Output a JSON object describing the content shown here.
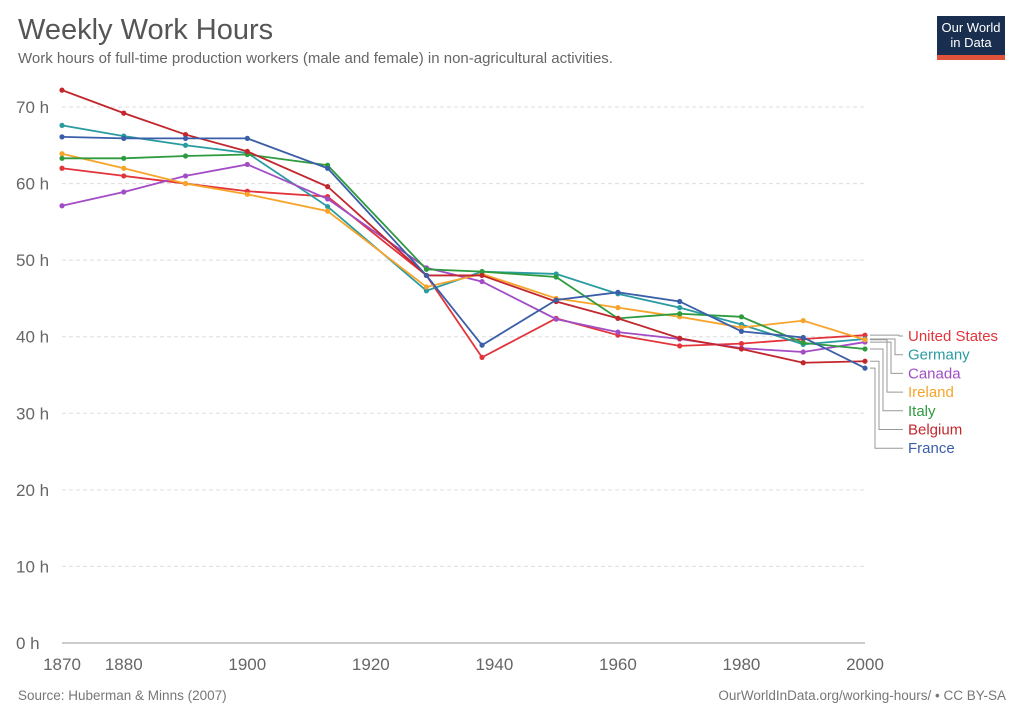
{
  "title": "Weekly Work Hours",
  "subtitle": "Work hours of full-time production workers (male and female) in non-agricultural activities.",
  "logo": {
    "line1": "Our World",
    "line2": "in Data"
  },
  "footer": {
    "source": "Source: Huberman & Minns (2007)",
    "link": "OurWorldInData.org/working-hours/ • CC BY-SA"
  },
  "chart_data": {
    "type": "line",
    "title": "Weekly Work Hours",
    "xlim": [
      1870,
      2000
    ],
    "ylim": [
      0,
      70
    ],
    "x_ticks": [
      1870,
      1880,
      1900,
      1920,
      1940,
      1960,
      1980,
      2000
    ],
    "y_ticks": [
      0,
      10,
      20,
      30,
      40,
      50,
      60,
      70
    ],
    "y_tick_labels": [
      "0 h",
      "10 h",
      "20 h",
      "30 h",
      "40 h",
      "50 h",
      "60 h",
      "70 h"
    ],
    "grid": "horizontal dashed",
    "legend": "right (labels at line ends)",
    "x": [
      1870,
      1880,
      1890,
      1900,
      1913,
      1929,
      1938,
      1950,
      1960,
      1970,
      1980,
      1990,
      2000
    ],
    "series": [
      {
        "name": "United States",
        "color": "#e2343b",
        "values": [
          62.0,
          61.0,
          60.0,
          59.0,
          58.3,
          48.0,
          37.3,
          42.4,
          40.2,
          38.8,
          39.1,
          39.7,
          40.2
        ]
      },
      {
        "name": "Germany",
        "color": "#2a9ba0",
        "values": [
          67.6,
          66.2,
          65.0,
          64.0,
          57.0,
          46.0,
          48.5,
          48.2,
          45.6,
          43.8,
          41.6,
          39.0,
          39.7
        ]
      },
      {
        "name": "Canada",
        "color": "#a24dc6",
        "values": [
          57.1,
          58.9,
          61.0,
          62.5,
          58.0,
          49.0,
          47.2,
          42.3,
          40.6,
          39.7,
          38.5,
          38.0,
          39.3
        ]
      },
      {
        "name": "Ireland",
        "color": "#f8a42a",
        "values": [
          63.9,
          62.0,
          60.0,
          58.6,
          56.4,
          46.5,
          48.2,
          45.0,
          43.8,
          42.6,
          41.2,
          42.1,
          39.6
        ]
      },
      {
        "name": "Italy",
        "color": "#2e9b3f",
        "values": [
          63.3,
          63.3,
          63.6,
          63.8,
          62.4,
          48.8,
          48.5,
          47.8,
          42.4,
          43.0,
          42.6,
          39.2,
          38.4
        ]
      },
      {
        "name": "Belgium",
        "color": "#c2272d",
        "values": [
          72.2,
          69.2,
          66.4,
          64.2,
          59.6,
          48.0,
          48.0,
          44.6,
          42.4,
          39.8,
          38.4,
          36.6,
          36.8
        ]
      },
      {
        "name": "France",
        "color": "#3a5ea8",
        "values": [
          66.1,
          65.9,
          65.9,
          65.9,
          62.0,
          48.0,
          38.9,
          44.8,
          45.8,
          44.6,
          40.7,
          39.9,
          35.9
        ]
      }
    ]
  }
}
